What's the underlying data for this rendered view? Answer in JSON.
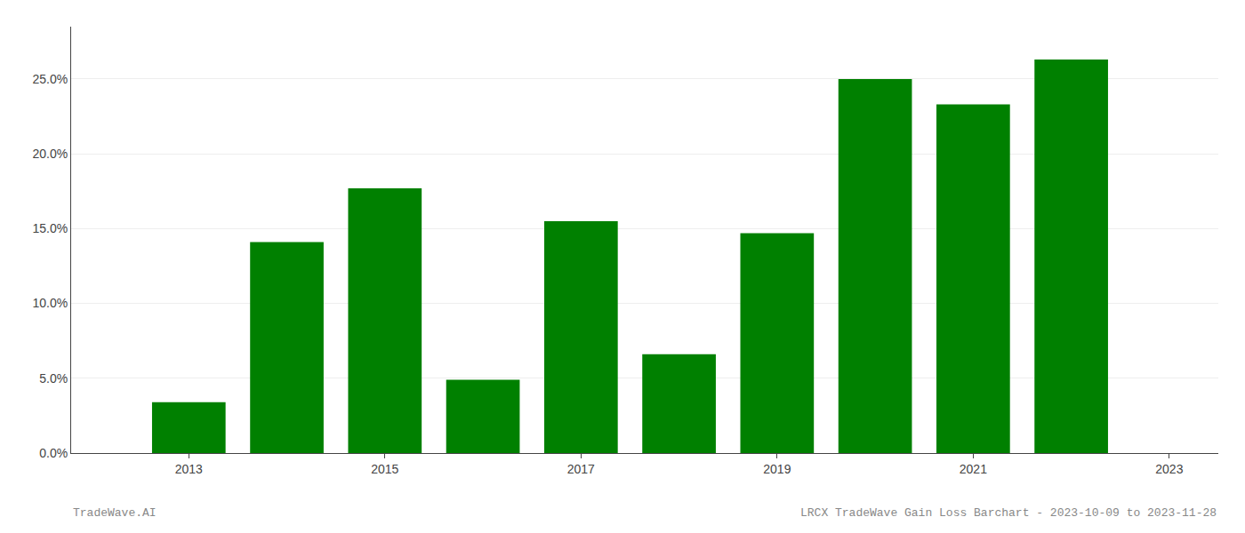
{
  "chart_data": {
    "type": "bar",
    "x": [
      2013,
      2014,
      2015,
      2016,
      2017,
      2018,
      2019,
      2020,
      2021,
      2022
    ],
    "values": [
      0.034,
      0.141,
      0.177,
      0.049,
      0.155,
      0.066,
      0.147,
      0.25,
      0.233,
      0.263
    ],
    "color": "#008000",
    "xlim": [
      2011.8,
      2023.5
    ],
    "xticks": [
      2013,
      2015,
      2017,
      2019,
      2021,
      2023
    ],
    "ylim": [
      0,
      0.285
    ],
    "yticks": [
      {
        "value": 0.0,
        "label": "0.0%"
      },
      {
        "value": 0.05,
        "label": "5.0%"
      },
      {
        "value": 0.1,
        "label": "10.0%"
      },
      {
        "value": 0.15,
        "label": "15.0%"
      },
      {
        "value": 0.2,
        "label": "20.0%"
      },
      {
        "value": 0.25,
        "label": "25.0%"
      }
    ],
    "grid": true,
    "annotations": [
      "TradeWave.AI",
      "LRCX TradeWave Gain Loss Barchart - 2023-10-09 to 2023-11-28"
    ]
  }
}
